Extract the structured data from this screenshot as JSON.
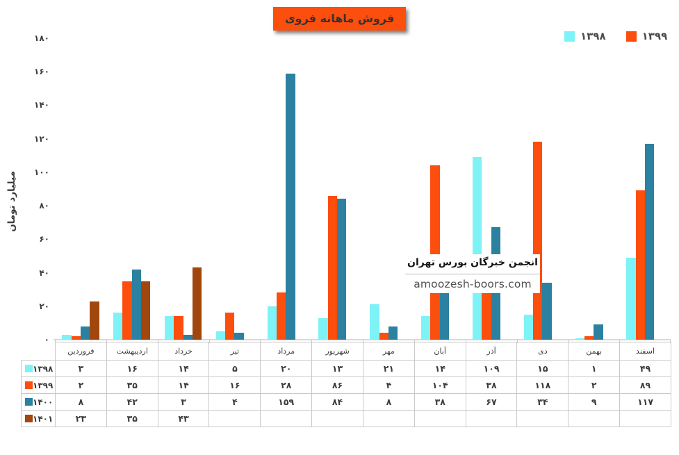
{
  "header": {
    "title": "فروش ماهانه فروی",
    "title_bg": "#FC4E0D",
    "title_color": "#333333"
  },
  "legend": {
    "items": [
      {
        "label": "۱۳۹۸",
        "color": "#7DF3F7"
      },
      {
        "label": "۱۳۹۹",
        "color": "#FC4E0D"
      }
    ]
  },
  "y_axis": {
    "title": "میلیارد تومان",
    "ticks": [
      {
        "value": 0,
        "label": "۰"
      },
      {
        "value": 20,
        "label": "۲۰"
      },
      {
        "value": 40,
        "label": "۴۰"
      },
      {
        "value": 60,
        "label": "۶۰"
      },
      {
        "value": 80,
        "label": "۸۰"
      },
      {
        "value": 100,
        "label": "۱۰۰"
      },
      {
        "value": 120,
        "label": "۱۲۰"
      },
      {
        "value": 140,
        "label": "۱۴۰"
      },
      {
        "value": 160,
        "label": "۱۶۰"
      },
      {
        "value": 180,
        "label": "۱۸۰"
      }
    ]
  },
  "watermark": {
    "line1": "انجمن خبرگان بورس تهران",
    "line2": "amoozesh-boors.com"
  },
  "chart_data": {
    "type": "bar",
    "title": "فروش ماهانه فروی",
    "ylabel": "میلیارد تومان",
    "ylim": [
      0,
      180
    ],
    "grid": false,
    "legend_position": "top-right",
    "categories": [
      "فروردین",
      "اردیبهشت",
      "خرداد",
      "تیر",
      "مرداد",
      "شهریور",
      "مهر",
      "آبان",
      "آذر",
      "دی",
      "بهمن",
      "اسفند"
    ],
    "series": [
      {
        "name": "۱۳۹۸",
        "id": "1398",
        "color": "#7DF3F7",
        "values": [
          3,
          16,
          14,
          5,
          20,
          13,
          21,
          14,
          109,
          15,
          1,
          49
        ],
        "labels_fa": [
          "۳",
          "۱۶",
          "۱۴",
          "۵",
          "۲۰",
          "۱۳",
          "۲۱",
          "۱۴",
          "۱۰۹",
          "۱۵",
          "۱",
          "۴۹"
        ]
      },
      {
        "name": "۱۳۹۹",
        "id": "1399",
        "color": "#FC4E0D",
        "values": [
          2,
          35,
          14,
          16,
          28,
          86,
          4,
          104,
          38,
          118,
          2,
          89
        ],
        "labels_fa": [
          "۲",
          "۳۵",
          "۱۴",
          "۱۶",
          "۲۸",
          "۸۶",
          "۴",
          "۱۰۴",
          "۳۸",
          "۱۱۸",
          "۲",
          "۸۹"
        ]
      },
      {
        "name": "۱۴۰۰",
        "id": "1400",
        "color": "#2C80A0",
        "values": [
          8,
          42,
          3,
          4,
          159,
          84,
          8,
          38,
          67,
          34,
          9,
          117
        ],
        "labels_fa": [
          "۸",
          "۴۲",
          "۳",
          "۴",
          "۱۵۹",
          "۸۴",
          "۸",
          "۳۸",
          "۶۷",
          "۳۴",
          "۹",
          "۱۱۷"
        ]
      },
      {
        "name": "۱۴۰۱",
        "id": "1401",
        "color": "#A1470E",
        "values": [
          23,
          35,
          43,
          null,
          null,
          null,
          null,
          null,
          null,
          null,
          null,
          null
        ],
        "labels_fa": [
          "۲۳",
          "۳۵",
          "۴۳",
          "",
          "",
          "",
          "",
          "",
          "",
          "",
          "",
          ""
        ]
      }
    ]
  }
}
